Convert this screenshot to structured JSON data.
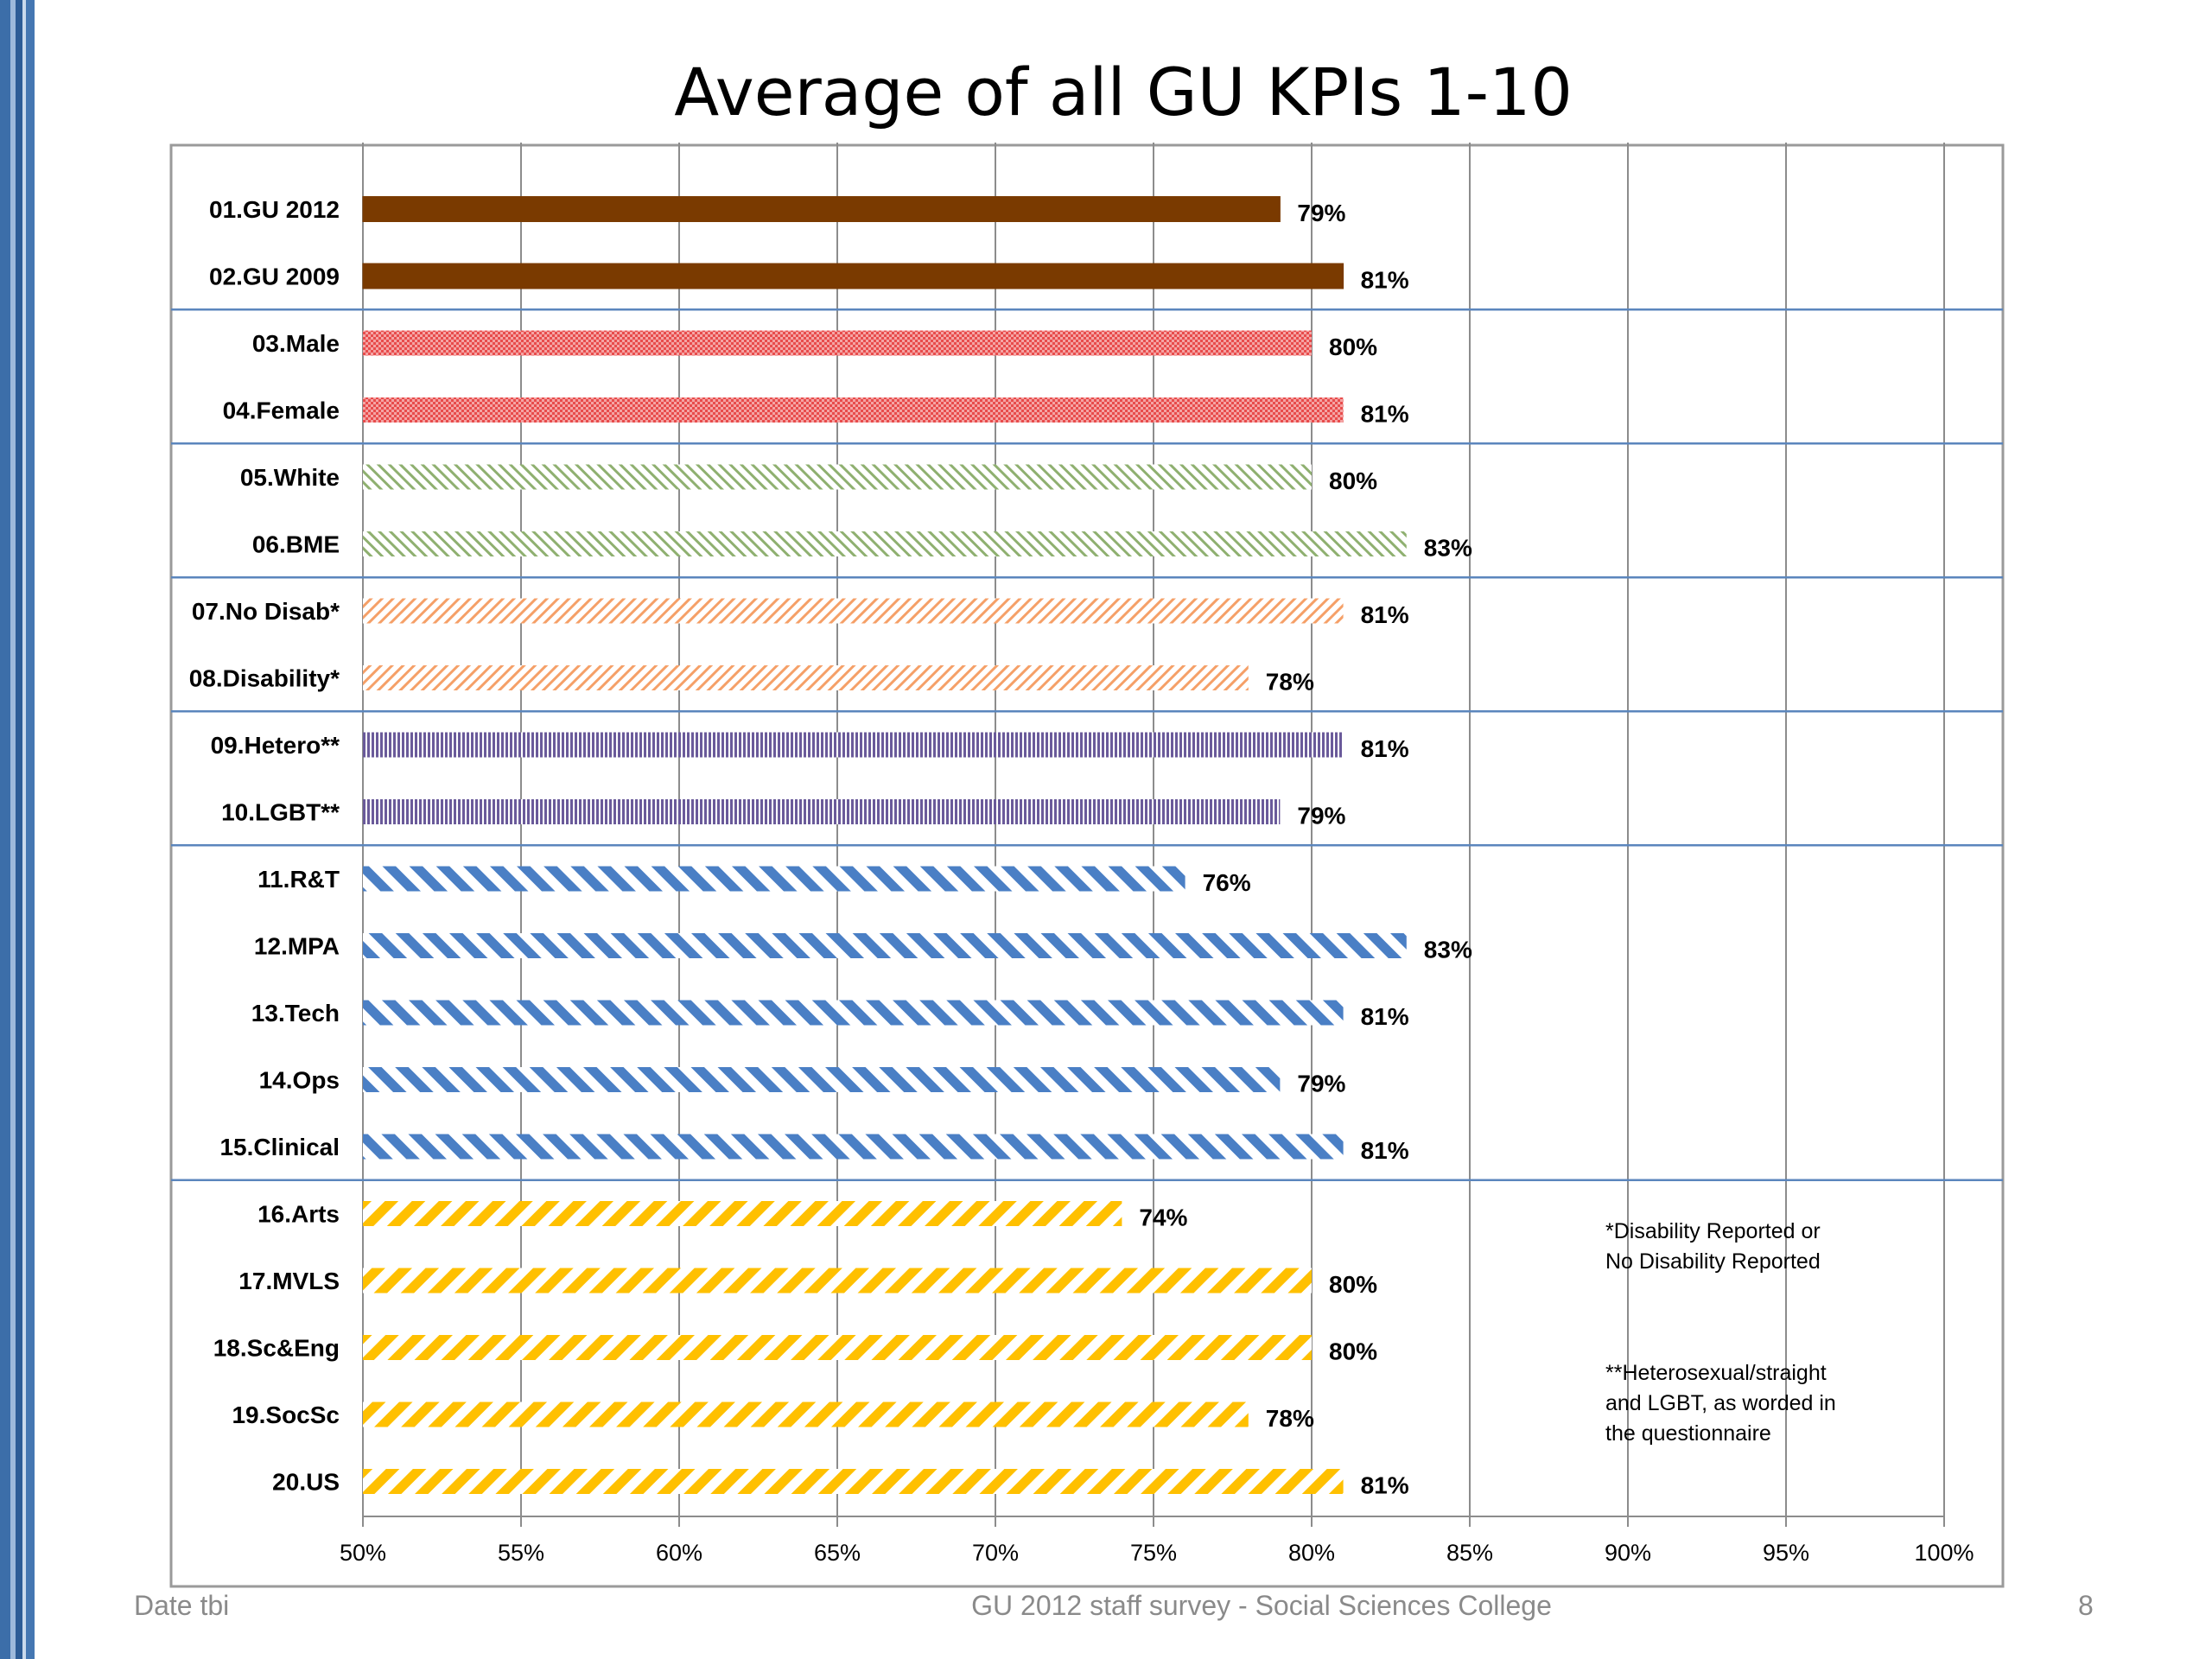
{
  "chart_data": {
    "type": "bar",
    "orientation": "horizontal",
    "title": "Average of all GU KPIs 1-10",
    "xlim": [
      50,
      100
    ],
    "x_ticks": [
      "50%",
      "55%",
      "60%",
      "65%",
      "70%",
      "75%",
      "80%",
      "85%",
      "90%",
      "95%",
      "100%"
    ],
    "grid": "vertical",
    "categories": [
      "01.GU 2012",
      "02.GU 2009",
      "03.Male",
      "04.Female",
      "05.White",
      "06.BME",
      "07.No Disab*",
      "08.Disability*",
      "09.Hetero**",
      "10.LGBT**",
      "11.R&T",
      "12.MPA",
      "13.Tech",
      "14.Ops",
      "15.Clinical",
      "16.Arts",
      "17.MVLS",
      "18.Sc&Eng",
      "19.SocSc",
      "20.US"
    ],
    "values": [
      79,
      81,
      80,
      81,
      80,
      83,
      81,
      78,
      81,
      79,
      76,
      83,
      81,
      79,
      81,
      74,
      80,
      80,
      78,
      81
    ],
    "value_labels": [
      "79%",
      "81%",
      "80%",
      "81%",
      "80%",
      "83%",
      "81%",
      "78%",
      "81%",
      "79%",
      "76%",
      "83%",
      "81%",
      "79%",
      "81%",
      "74%",
      "80%",
      "80%",
      "78%",
      "81%"
    ],
    "groups": [
      {
        "rows": [
          0,
          1
        ],
        "color": "#7a3a00",
        "pattern": "solid"
      },
      {
        "rows": [
          2,
          3
        ],
        "color": "#f07070",
        "pattern": "dots"
      },
      {
        "rows": [
          4,
          5
        ],
        "color": "#8fb070",
        "pattern": "fine-diagonal"
      },
      {
        "rows": [
          6,
          7
        ],
        "color": "#f5a068",
        "pattern": "fine-diagonal-forward"
      },
      {
        "rows": [
          8,
          9
        ],
        "color": "#6a5a9a",
        "pattern": "vertical"
      },
      {
        "rows": [
          10,
          11,
          12,
          13,
          14
        ],
        "color": "#4a7fc5",
        "pattern": "wide-diagonal"
      },
      {
        "rows": [
          15,
          16,
          17,
          18,
          19
        ],
        "color": "#ffc000",
        "pattern": "wide-diagonal-forward"
      }
    ],
    "notes": [
      "*Disability Reported or\nNo Disability Reported",
      "**Heterosexual/straight\nand LGBT, as worded in\nthe questionnaire"
    ]
  },
  "footer": {
    "left": "Date tbi",
    "center": "GU 2012 staff survey -  Social Sciences College",
    "page_number": "8"
  }
}
